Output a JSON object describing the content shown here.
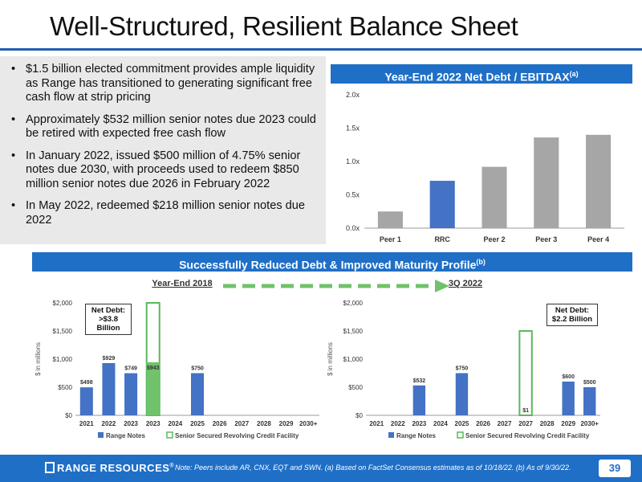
{
  "title": "Well-Structured, Resilient Balance Sheet",
  "bullets": [
    "$1.5 billion elected commitment provides ample liquidity as Range has transitioned to generating significant free cash flow at strip pricing",
    "Approximately $532 million senior notes due 2023 could be retired with expected free cash flow",
    "In January 2022, issued $500 million of 4.75% senior notes due 2030, with proceeds used to redeem $850 million senior notes due 2026 in February 2022",
    "In May 2022, redeemed $218 million senior notes due 2022"
  ],
  "top_chart_title": "Year-End 2022 Net Debt / EBITDAX",
  "top_chart_title_sup": "(a)",
  "mid_banner": "Successfully Reduced Debt & Improved Maturity Profile",
  "mid_banner_sup": "(b)",
  "colors": {
    "accent": "#1f6fc6",
    "rrc_bar": "#4472c4",
    "peer_bar": "#a6a6a6",
    "rcf_fill": "#70c26b",
    "rcf_border": "#5bb85b"
  },
  "chart_data": [
    {
      "type": "bar",
      "title": "Year-End 2022 Net Debt / EBITDAX(a)",
      "categories": [
        "Peer 1",
        "RRC",
        "Peer 2",
        "Peer 3",
        "Peer 4"
      ],
      "values": [
        0.25,
        0.71,
        0.92,
        1.36,
        1.4
      ],
      "ylim": [
        0,
        2.0
      ],
      "yticks": [
        "0.0x",
        "0.5x",
        "1.0x",
        "1.5x",
        "2.0x"
      ],
      "grid": false
    },
    {
      "type": "bar",
      "title": "Year-End 2018",
      "ylabel": "$ in millions",
      "categories": [
        "2021",
        "2022",
        "2023",
        "2023",
        "2024",
        "2025",
        "2026",
        "2027",
        "2028",
        "2029",
        "2030+"
      ],
      "series": [
        {
          "name": "Range Notes",
          "values": [
            498,
            929,
            749,
            0,
            0,
            750,
            0,
            0,
            0,
            0,
            0
          ],
          "labels": [
            "$498",
            "$929",
            "$749",
            "",
            "",
            "$750",
            "",
            "",
            "",
            "",
            ""
          ]
        },
        {
          "name": "Senior Secured Revolving Credit Facility",
          "outline_limit": 2000,
          "values": [
            0,
            0,
            0,
            943,
            0,
            0,
            0,
            0,
            0,
            0,
            0
          ],
          "labels": [
            "",
            "",
            "",
            "$943",
            "",
            "",
            "",
            "",
            "",
            "",
            ""
          ]
        }
      ],
      "ylim": [
        0,
        2000
      ],
      "yticks": [
        "$0",
        "$500",
        "$1,000",
        "$1,500",
        "$2,000"
      ],
      "net_debt_label": "Net Debt:",
      "net_debt_value": ">$3.8 Billion"
    },
    {
      "type": "bar",
      "title": "3Q 2022",
      "ylabel": "$ in millions",
      "categories": [
        "2021",
        "2022",
        "2023",
        "2024",
        "2025",
        "2026",
        "2027",
        "2027",
        "2028",
        "2029",
        "2030+"
      ],
      "series": [
        {
          "name": "Range Notes",
          "values": [
            0,
            0,
            532,
            0,
            750,
            0,
            0,
            0,
            0,
            600,
            500
          ],
          "labels": [
            "",
            "",
            "$532",
            "",
            "$750",
            "",
            "",
            "",
            "",
            "$600",
            "$500"
          ]
        },
        {
          "name": "Senior Secured Revolving Credit Facility",
          "outline_limit": 1500,
          "values": [
            0,
            0,
            0,
            0,
            0,
            0,
            0,
            1,
            0,
            0,
            0
          ],
          "labels": [
            "",
            "",
            "",
            "",
            "",
            "",
            "",
            "$1",
            "",
            "",
            ""
          ]
        }
      ],
      "ylim": [
        0,
        2000
      ],
      "yticks": [
        "$0",
        "$500",
        "$1,000",
        "$1,500",
        "$2,000"
      ],
      "net_debt_label": "Net Debt:",
      "net_debt_value": "$2.2 Billion"
    }
  ],
  "footer": {
    "brand": "RANGE RESOURCES",
    "note": "Note: Peers include AR, CNX, EQT and SWN. (a) Based on FactSet Consensus estimates as of 10/18/22. (b) As of 9/30/22.",
    "page": "39"
  }
}
